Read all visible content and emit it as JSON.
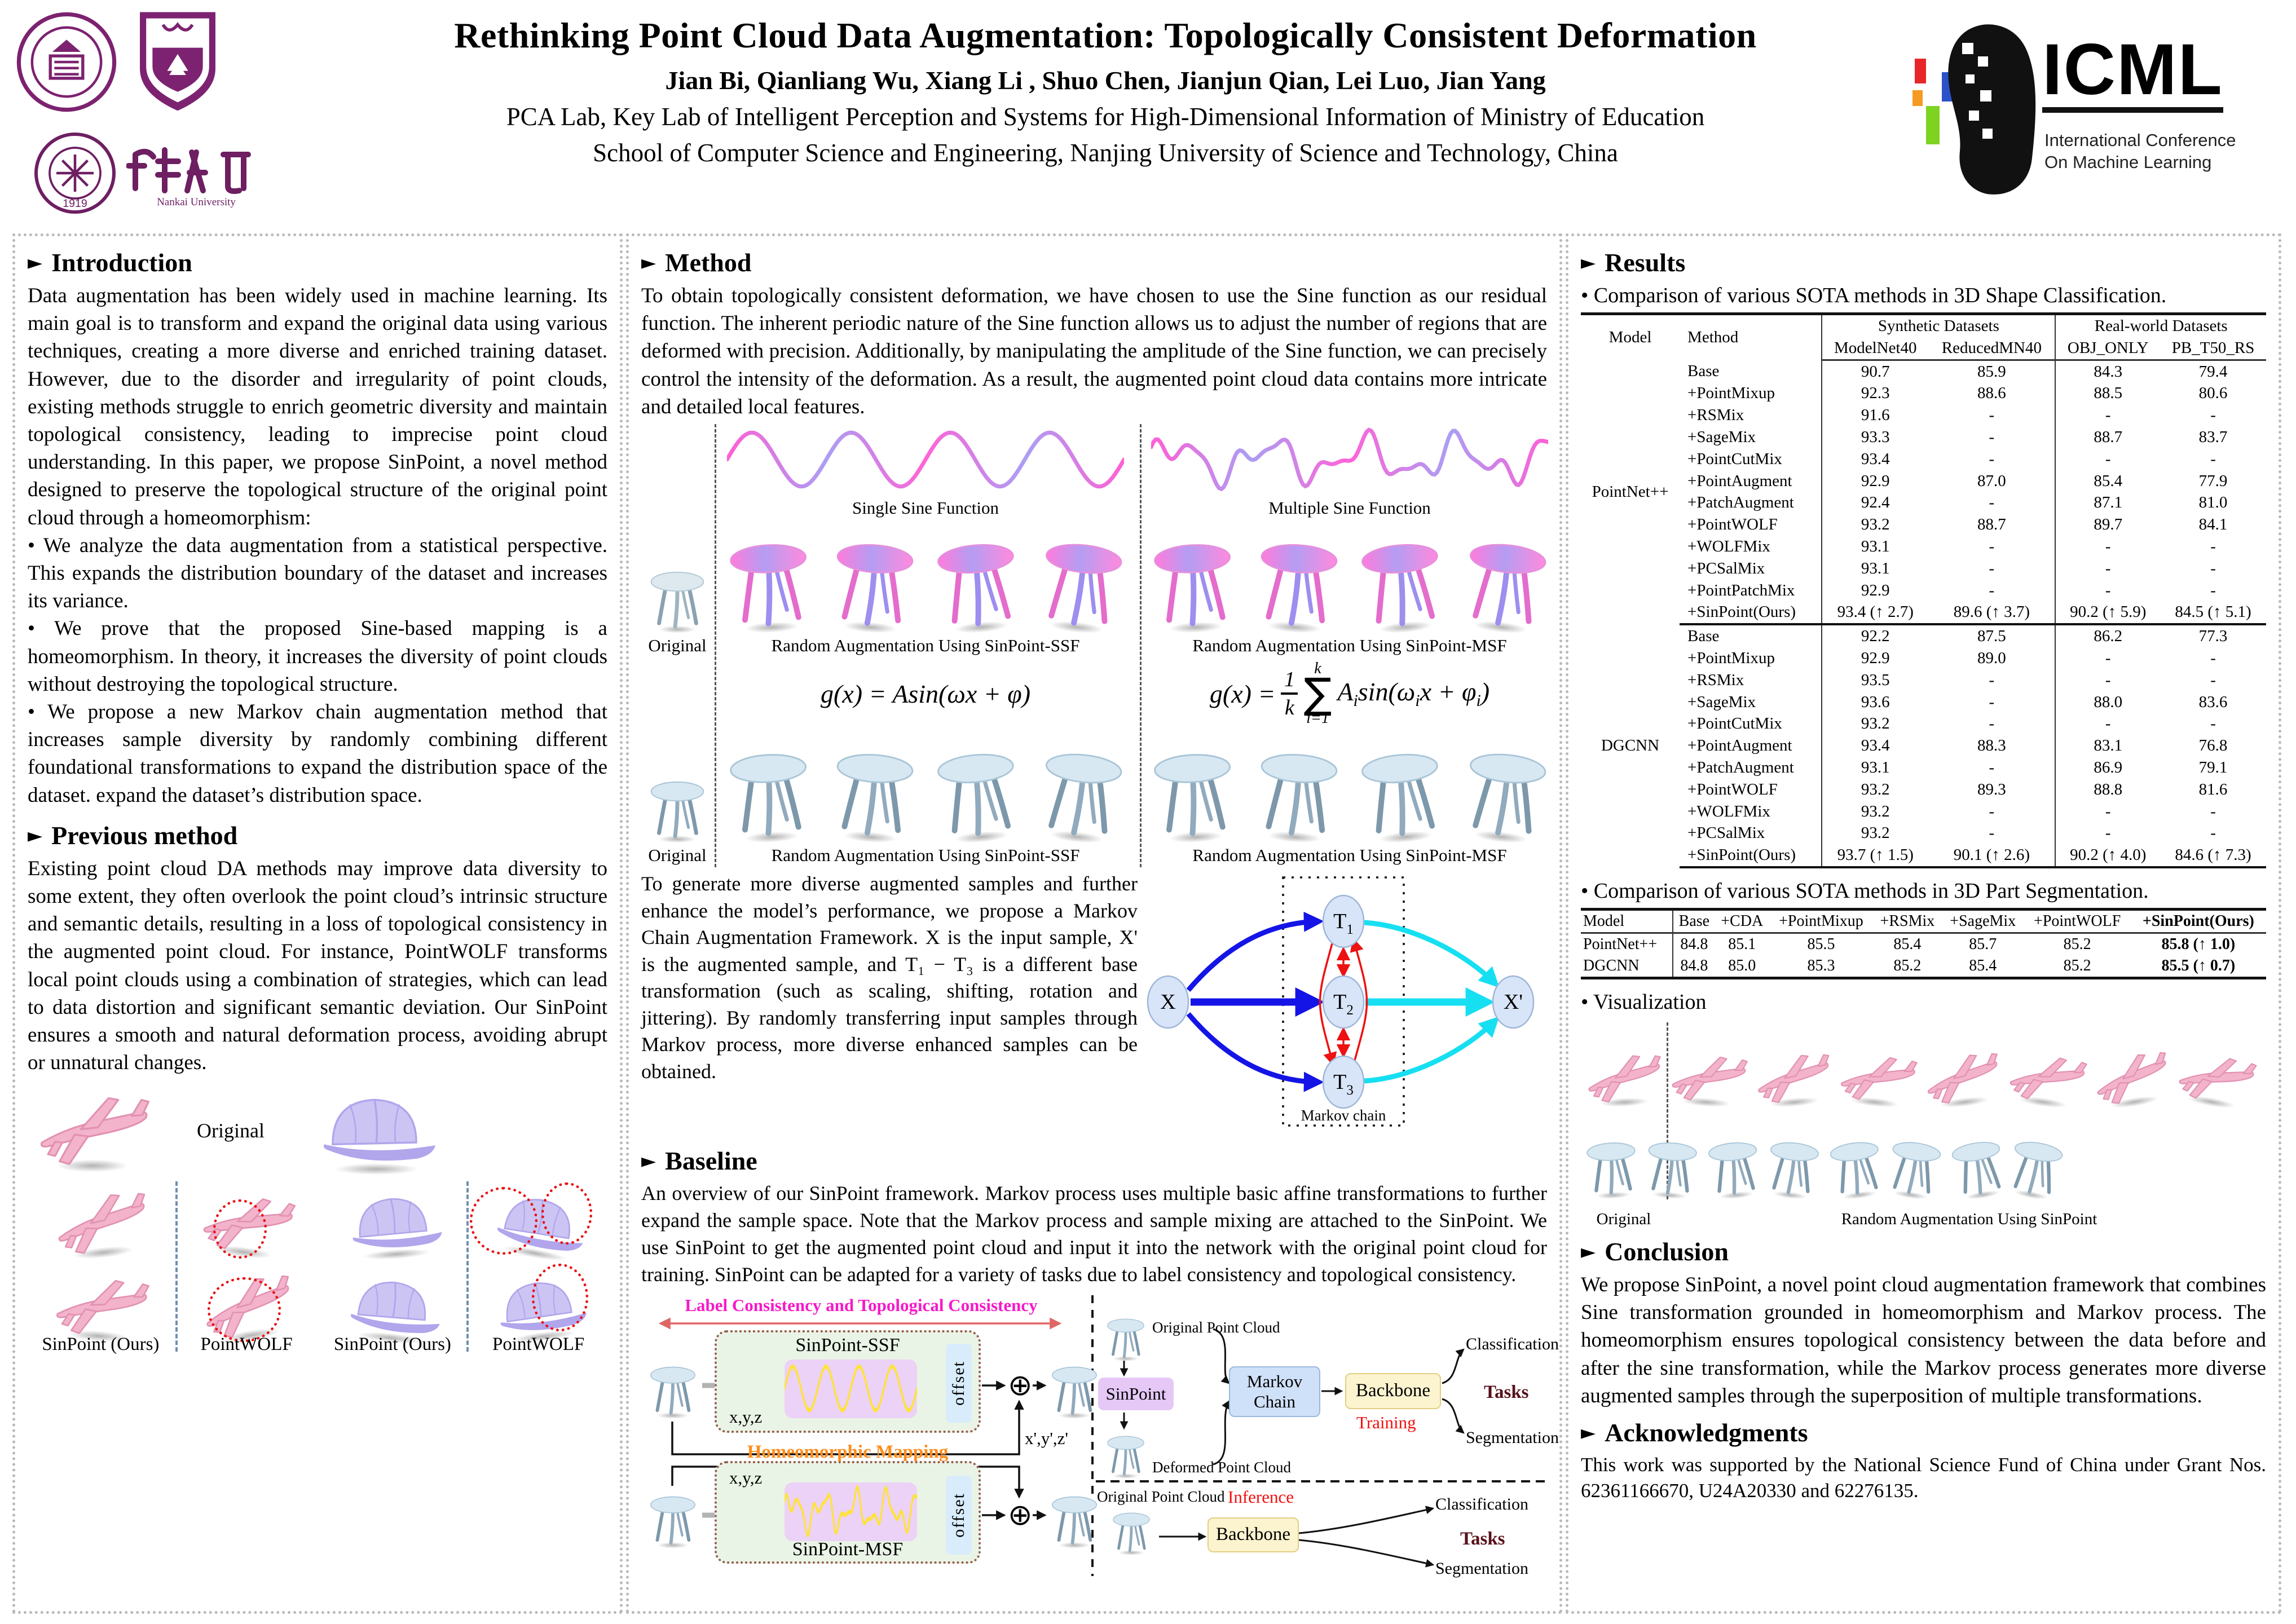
{
  "header": {
    "title": "Rethinking Point Cloud Data Augmentation: Topologically Consistent Deformation",
    "authors": "Jian Bi, Qianliang Wu, Xiang Li , Shuo Chen, Jianjun Qian, Lei Luo, Jian Yang",
    "affiliation1": "PCA Lab, Key Lab of Intelligent Perception and Systems for High-Dimensional Information of Ministry of Education",
    "affiliation2": "School of Computer Science and Engineering, Nanjing University of Science and Technology, China",
    "logos": {
      "njust_label": "Nanjing University of Science and Technology",
      "nju_label": "Nanjing University",
      "nankai_label": "Nankai University",
      "nankai_caption": "Nankai University"
    },
    "icml": {
      "name": "ICML",
      "subtitle1": "International Conference",
      "subtitle2": "On Machine Learning"
    }
  },
  "intro": {
    "heading": "Introduction",
    "para1": "Data augmentation has been widely used in machine learning. Its main goal is to transform and expand the original data using various techniques, creating a more diverse and enriched training dataset. However, due to the disorder and irregularity of point clouds, existing methods struggle to enrich geometric diversity and maintain topological consistency, leading to imprecise point cloud understanding. In this paper, we propose SinPoint, a novel method designed to preserve the topological structure of the original point cloud through a homeomorphism:",
    "bullet1": "We analyze the data augmentation from a statistical perspective. This expands the distribution boundary of the dataset and increases its variance.",
    "bullet2": "We prove that the proposed Sine-based mapping is a homeomorphism. In theory, it increases the diversity of point clouds without destroying the topological structure.",
    "bullet3": "We propose a new Markov chain augmentation method that increases sample diversity by randomly combining different foundational transformations to expand the distribution space of the dataset. expand the dataset’s distribution space."
  },
  "previous": {
    "heading": "Previous method",
    "para1": "Existing point cloud DA methods may improve data diversity to some extent, they often overlook the point cloud’s intrinsic structure and semantic details, resulting in a loss of topological consistency in the augmented point cloud. For instance, PointWOLF transforms local point clouds using a combination of strategies, which can lead to data distortion and significant semantic deviation. Our SinPoint ensures a smooth and natural deformation process, avoiding abrupt or unnatural changes.",
    "figure": {
      "original_label": "Original",
      "col_labels": [
        "SinPoint (Ours)",
        "PointWOLF",
        "SinPoint (Ours)",
        "PointWOLF"
      ]
    }
  },
  "method": {
    "heading": "Method",
    "para1": "To obtain topologically consistent deformation, we have chosen to use the Sine function as our residual function. The inherent periodic nature of the Sine function allows us to adjust the number of regions that are deformed with precision. Additionally, by manipulating the amplitude of the Sine function, we can precisely control the intensity of the deformation. As a result, the augmented point cloud data contains more intricate and detailed local features.",
    "figure": {
      "single_sine_label": "Single Sine Function",
      "multiple_sine_label": "Multiple Sine Function",
      "original_label": "Original",
      "ssf_label": "Random Augmentation Using SinPoint-SSF",
      "msf_label": "Random Augmentation Using SinPoint-MSF",
      "formula_ssf": "g(x) = Asin(ωx + φ)",
      "formula_msf": {
        "lhs": "g(x) =",
        "frac_top": "1",
        "frac_bot": "k",
        "sum_top": "k",
        "sum_symbol": "∑",
        "sum_bot": "i=1",
        "rhs_parts": [
          "A",
          "i",
          "sin(ω",
          "i",
          "x + φ",
          "i",
          ")"
        ]
      }
    },
    "para2": "To generate more diverse augmented samples and further enhance the model’s performance, we propose a Markov Chain Augmentation Framework. X is the input sample, X' is the augmented sample, and T₁ − T₃ is a different base transformation (such as scaling, shifting, rotation and jittering). By randomly transferring input samples through Markov process, more diverse enhanced samples can be obtained.",
    "markov": {
      "input": "X",
      "output": "X'",
      "nodes": [
        "T",
        "T",
        "T"
      ],
      "subs": [
        "1",
        "2",
        "3"
      ],
      "caption": "Markov chain"
    }
  },
  "baseline": {
    "heading": "Baseline",
    "para1": "An overview of our SinPoint framework. Markov process uses multiple basic affine transformations to further expand the sample space. Note that the Markov process and sample mixing are attached to the SinPoint. We use SinPoint to get the augmented point cloud and input it into the network with the original point cloud for training. SinPoint can be adapted for a variety of tasks due to label consistency and topological consistency.",
    "diagram": {
      "consistency_label": "Label Consistency and Topological Consistency",
      "ssf_box": "SinPoint-SSF",
      "msf_box": "SinPoint-MSF",
      "xyz": "x,y,z",
      "offset": "offset",
      "plus": "⊕",
      "homeomorphic": "Homeomorphic Mapping",
      "xyz_out": "x',y',z'",
      "original_pc": "Original Point Cloud",
      "deformed_pc": "Deformed Point Cloud",
      "original_pc2": "Original Point Cloud",
      "sinpoint": "SinPoint",
      "markov_line1": "Markov",
      "markov_line2": "Chain",
      "backbone": "Backbone",
      "backbone2": "Backbone",
      "training": "Training",
      "inference": "Inference",
      "classification": "Classification",
      "tasks": "Tasks",
      "segmentation": "Segmentation",
      "classification2": "Classification",
      "tasks2": "Tasks",
      "segmentation2": "Segmentation"
    }
  },
  "results": {
    "heading": "Results",
    "caption1": "• Comparison of various SOTA methods in 3D Shape Classification.",
    "classification_table": {
      "col_model": "Model",
      "col_method": "Method",
      "group_synthetic": "Synthetic Datasets",
      "group_real": "Real-world Datasets",
      "sub_headers": [
        "ModelNet40",
        "ReducedMN40",
        "OBJ_ONLY",
        "PB_T50_RS"
      ],
      "groups": [
        {
          "model": "PointNet++",
          "rows": [
            {
              "method": "Base",
              "values": [
                "90.7",
                "85.9",
                "84.3",
                "79.4"
              ]
            },
            {
              "method": "+PointMixup",
              "values": [
                "92.3",
                "88.6",
                "88.5",
                "80.6"
              ]
            },
            {
              "method": "+RSMix",
              "values": [
                "91.6",
                "-",
                "-",
                "-"
              ]
            },
            {
              "method": "+SageMix",
              "values": [
                "93.3",
                "-",
                "88.7",
                "83.7"
              ]
            },
            {
              "method": "+PointCutMix",
              "values": [
                "93.4",
                "-",
                "-",
                "-"
              ]
            },
            {
              "method": "+PointAugment",
              "values": [
                "92.9",
                "87.0",
                "85.4",
                "77.9"
              ]
            },
            {
              "method": "+PatchAugment",
              "values": [
                "92.4",
                "-",
                "87.1",
                "81.0"
              ]
            },
            {
              "method": "+PointWOLF",
              "values": [
                "93.2",
                "88.7",
                "89.7",
                "84.1"
              ]
            },
            {
              "method": "+WOLFMix",
              "values": [
                "93.1",
                "-",
                "-",
                "-"
              ]
            },
            {
              "method": "+PCSalMix",
              "values": [
                "93.1",
                "-",
                "-",
                "-"
              ]
            },
            {
              "method": "+PointPatchMix",
              "values": [
                "92.9",
                "-",
                "-",
                "-"
              ]
            },
            {
              "method": "+SinPoint(Ours)",
              "values": [
                "93.4 (↑ 2.7)",
                "89.6 (↑ 3.7)",
                "90.2 (↑ 5.9)",
                "84.5 (↑ 5.1)"
              ],
              "bold": true
            }
          ]
        },
        {
          "model": "DGCNN",
          "rows": [
            {
              "method": "Base",
              "values": [
                "92.2",
                "87.5",
                "86.2",
                "77.3"
              ]
            },
            {
              "method": "+PointMixup",
              "values": [
                "92.9",
                "89.0",
                "-",
                "-"
              ]
            },
            {
              "method": "+RSMix",
              "values": [
                "93.5",
                "-",
                "-",
                "-"
              ]
            },
            {
              "method": "+SageMix",
              "values": [
                "93.6",
                "-",
                "88.0",
                "83.6"
              ]
            },
            {
              "method": "+PointCutMix",
              "values": [
                "93.2",
                "-",
                "-",
                "-"
              ]
            },
            {
              "method": "+PointAugment",
              "values": [
                "93.4",
                "88.3",
                "83.1",
                "76.8"
              ]
            },
            {
              "method": "+PatchAugment",
              "values": [
                "93.1",
                "-",
                "86.9",
                "79.1"
              ]
            },
            {
              "method": "+PointWOLF",
              "values": [
                "93.2",
                "89.3",
                "88.8",
                "81.6"
              ]
            },
            {
              "method": "+WOLFMix",
              "values": [
                "93.2",
                "-",
                "-",
                "-"
              ]
            },
            {
              "method": "+PCSalMix",
              "values": [
                "93.2",
                "-",
                "-",
                "-"
              ]
            },
            {
              "method": "+SinPoint(Ours)",
              "values": [
                "93.7 (↑ 1.5)",
                "90.1 (↑ 2.6)",
                "90.2 (↑ 4.0)",
                "84.6 (↑ 7.3)"
              ],
              "bold": true
            }
          ]
        }
      ]
    },
    "caption2": "• Comparison of various SOTA methods in 3D Part Segmentation.",
    "segmentation_table": {
      "headers": [
        "Model",
        "Base",
        "+CDA",
        "+PointMixup",
        "+RSMix",
        "+SageMix",
        "+PointWOLF",
        "+SinPoint(Ours)"
      ],
      "rows": [
        {
          "model": "PointNet++",
          "values": [
            "84.8",
            "85.1",
            "85.5",
            "85.4",
            "85.7",
            "85.2",
            "85.8 (↑ 1.0)"
          ]
        },
        {
          "model": "DGCNN",
          "values": [
            "84.8",
            "85.0",
            "85.3",
            "85.2",
            "85.4",
            "85.2",
            "85.5 (↑ 0.7)"
          ]
        }
      ]
    },
    "caption3": "• Visualization",
    "visualization": {
      "original_label": "Original",
      "augmented_label": "Random Augmentation Using SinPoint"
    }
  },
  "conclusion": {
    "heading": "Conclusion",
    "para1": "We propose SinPoint, a novel point cloud augmentation framework that combines Sine transformation grounded in homeomorphism and Markov process. The homeomorphism ensures topological consistency between the data before and after the sine transformation, while the Markov process generates more diverse augmented samples through the superposition of multiple transformations."
  },
  "acknowledgments": {
    "heading": "Acknowledgments",
    "para1": "This work was supported by the National Science Fund of China under Grant Nos. 62361166670, U24A20330 and 62276135."
  }
}
